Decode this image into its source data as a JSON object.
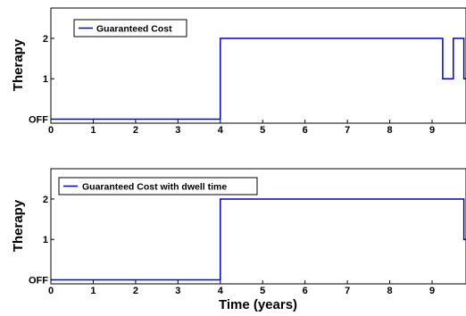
{
  "chart_data": [
    {
      "type": "line",
      "step": true,
      "ylabel": "Therapy",
      "xlabel": "",
      "xlim": [
        0,
        9.8
      ],
      "ylim": [
        -0.1,
        2.75
      ],
      "xticks": [
        "0",
        "1",
        "2",
        "3",
        "4",
        "5",
        "6",
        "7",
        "8",
        "9"
      ],
      "yticks": [
        {
          "value": 0,
          "label": "OFF"
        },
        {
          "value": 1,
          "label": "1"
        },
        {
          "value": 2,
          "label": "2"
        }
      ],
      "legend_position": "top-left",
      "grid": false,
      "series": [
        {
          "name": "Guaranteed Cost",
          "color": "#0000cc",
          "x": [
            0,
            4,
            4,
            9.25,
            9.25,
            9.5,
            9.5,
            9.75,
            9.75,
            9.8
          ],
          "y": [
            0,
            0,
            2,
            2,
            1,
            1,
            2,
            2,
            1,
            1
          ]
        }
      ]
    },
    {
      "type": "line",
      "step": true,
      "ylabel": "Therapy",
      "xlabel": "Time (years)",
      "xlim": [
        0,
        9.8
      ],
      "ylim": [
        -0.1,
        2.75
      ],
      "xticks": [
        "0",
        "1",
        "2",
        "3",
        "4",
        "5",
        "6",
        "7",
        "8",
        "9"
      ],
      "yticks": [
        {
          "value": 0,
          "label": "OFF"
        },
        {
          "value": 1,
          "label": "1"
        },
        {
          "value": 2,
          "label": "2"
        }
      ],
      "legend_position": "top-left",
      "grid": false,
      "series": [
        {
          "name": "Guaranteed Cost with dwell time",
          "color": "#0000cc",
          "x": [
            0,
            4,
            4,
            9.75,
            9.75,
            9.8
          ],
          "y": [
            0,
            0,
            2,
            2,
            1,
            1
          ]
        }
      ]
    }
  ]
}
